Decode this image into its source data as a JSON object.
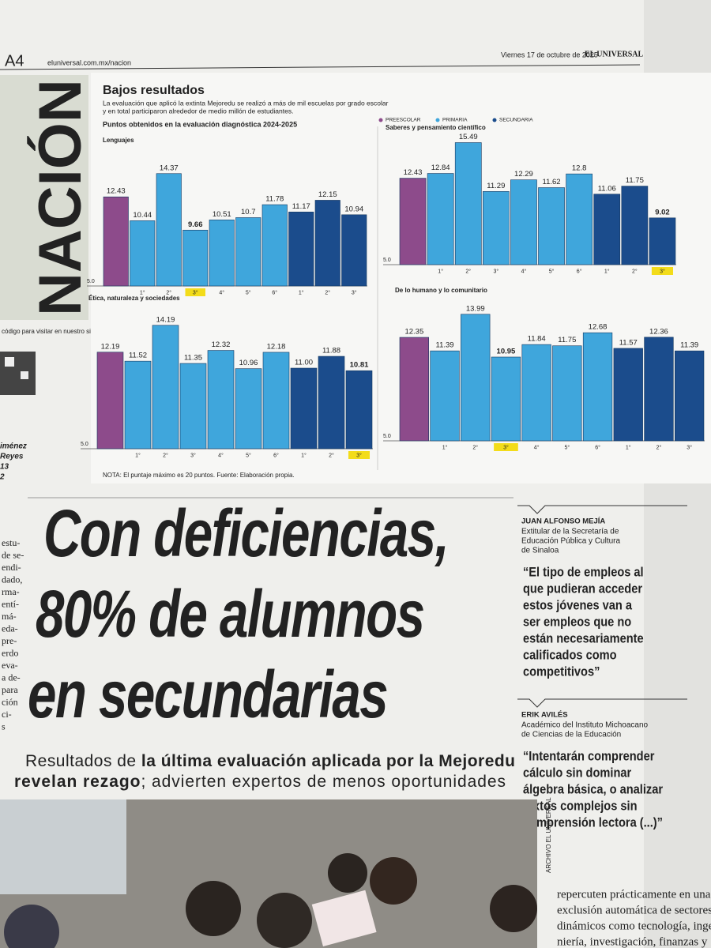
{
  "header": {
    "page": "A4",
    "url": "eluniversal.com.mx/nacion",
    "date": "Viernes 17 de octubre de 2025",
    "brand": "EL UNIVERSAL"
  },
  "section": "NACIÓN",
  "sidebar": {
    "qr_text": "código para visitar en nuestro sitio web",
    "author_lines": [
      "iménez",
      "Reyes",
      "13",
      "2"
    ]
  },
  "infographic": {
    "title": "Bajos resultados",
    "description": [
      "La evaluación que aplicó la extinta Mejoredu  se realizó a más de mil escuelas por grado escolar",
      "y en total participaron alrededor de medio millón de estudiantes."
    ],
    "subtitle": "Puntos obtenidos en la evaluación diagnóstica 2024-2025",
    "legend": [
      {
        "name": "PREESCOLAR",
        "color": "#8d4b8b"
      },
      {
        "name": "PRIMARIA",
        "color": "#3fa6dc"
      },
      {
        "name": "SECUNDARIA",
        "color": "#1b4c8c"
      }
    ],
    "note": "NOTA: El puntaje máximo es 20 puntos. Fuente: Elaboración propia."
  },
  "chart_data": [
    {
      "type": "bar",
      "title": "Lenguajes",
      "categories": [
        null,
        "1°",
        "2°",
        "3°",
        "4°",
        "5°",
        "6°",
        "1°",
        "2°",
        "3°"
      ],
      "values": [
        12.43,
        10.44,
        14.37,
        9.66,
        10.51,
        10.7,
        11.78,
        11.17,
        12.15,
        10.94
      ],
      "colors": [
        "#8d4b8b",
        "#3fa6dc",
        "#3fa6dc",
        "#3fa6dc",
        "#3fa6dc",
        "#3fa6dc",
        "#3fa6dc",
        "#1b4c8c",
        "#1b4c8c",
        "#1b4c8c"
      ],
      "highlight": 3,
      "highlight_color": "#f3dc1a",
      "ylim": [
        5,
        16
      ],
      "yticks": [
        {
          "value": 5,
          "label": "5.0"
        }
      ]
    },
    {
      "type": "bar",
      "title": "Saberes y pensamiento científico",
      "categories": [
        null,
        "1°",
        "2°",
        "3°",
        "4°",
        "5°",
        "6°",
        "1°",
        "2°",
        "3°"
      ],
      "values": [
        12.43,
        12.84,
        15.49,
        11.29,
        12.29,
        11.62,
        12.8,
        11.06,
        11.75,
        9.02
      ],
      "colors": [
        "#8d4b8b",
        "#3fa6dc",
        "#3fa6dc",
        "#3fa6dc",
        "#3fa6dc",
        "#3fa6dc",
        "#3fa6dc",
        "#1b4c8c",
        "#1b4c8c",
        "#1b4c8c"
      ],
      "highlight": 9,
      "highlight_color": "#f3dc1a",
      "ylim": [
        5,
        16
      ],
      "yticks": [
        {
          "value": 5,
          "label": "5.0"
        }
      ]
    },
    {
      "type": "bar",
      "title": "Ética, naturaleza y sociedades",
      "categories": [
        null,
        "1°",
        "2°",
        "3°",
        "4°",
        "5°",
        "6°",
        "1°",
        "2°",
        "3°"
      ],
      "values": [
        12.19,
        11.52,
        14.19,
        11.35,
        12.32,
        10.96,
        12.18,
        11,
        11.88,
        10.81
      ],
      "value_labels": [
        "12.19",
        "11.52",
        "14.19",
        "11.35",
        "12.32",
        "10.96",
        "12.18",
        "11.00",
        "11.88",
        "10.81"
      ],
      "colors": [
        "#8d4b8b",
        "#3fa6dc",
        "#3fa6dc",
        "#3fa6dc",
        "#3fa6dc",
        "#3fa6dc",
        "#3fa6dc",
        "#1b4c8c",
        "#1b4c8c",
        "#1b4c8c"
      ],
      "highlight": 9,
      "highlight_color": "#f3dc1a",
      "ylim": [
        5,
        16
      ],
      "yticks": [
        {
          "value": 5,
          "label": "5.0"
        }
      ]
    },
    {
      "type": "bar",
      "title": "De lo humano y lo comunitario",
      "categories": [
        null,
        "1°",
        "2°",
        "3°",
        "4°",
        "5°",
        "6°",
        "1°",
        "2°",
        "3°"
      ],
      "values": [
        12.35,
        11.39,
        13.99,
        10.95,
        11.84,
        11.75,
        12.68,
        11.57,
        12.36,
        11.39
      ],
      "colors": [
        "#8d4b8b",
        "#3fa6dc",
        "#3fa6dc",
        "#3fa6dc",
        "#3fa6dc",
        "#3fa6dc",
        "#3fa6dc",
        "#1b4c8c",
        "#1b4c8c",
        "#1b4c8c"
      ],
      "highlight": 3,
      "highlight_color": "#f3dc1a",
      "ylim": [
        5,
        16
      ],
      "yticks": [
        {
          "value": 5,
          "label": "5.0"
        }
      ]
    }
  ],
  "article": {
    "headline": [
      "Con deficiencias,",
      "80% de alumnos",
      "en secundarias"
    ],
    "subhead": [
      {
        "text": "Resultados de ",
        "bold": false
      },
      {
        "text": "la última evaluación aplicada por la Mejoredu",
        "bold": true
      },
      {
        "text": "revelan rezago",
        "bold": true
      },
      {
        "text": "; advierten expertos de menos oportunidades",
        "bold": false
      }
    ],
    "left_column": [
      "estu-",
      "de se-",
      "endi-",
      "dado,",
      "rma-",
      "entí-",
      "má-",
      "eda-",
      "pre-",
      "erdo",
      "eva-",
      "a de-",
      "para",
      "ción",
      "ci-",
      "s"
    ],
    "photo_credit": "ARCHIVO EL UNIVERSAL",
    "body": [
      "repercuten prácticamente en una",
      "exclusión automática de sectores",
      "dinámicos como tecnología, inge-",
      "niería, investigación, finanzas y"
    ]
  },
  "quotes": [
    {
      "name": "JUAN ALFONSO MEJÍA",
      "role": [
        "Extitular de la Secretaría de",
        "Educación Pública y Cultura",
        "de Sinaloa"
      ],
      "quote": [
        "“El tipo de empleos al",
        "que pudieran acceder",
        "estos jóvenes van a",
        "ser empleos que no",
        "están necesariamente",
        "calificados como",
        "competitivos”"
      ]
    },
    {
      "name": "ERIK AVILÉS",
      "role": [
        "Académico del Instituto Michoacano",
        "de Ciencias de la Educación"
      ],
      "quote": [
        "“Intentarán comprender",
        "cálculo sin dominar",
        "álgebra básica, o analizar",
        "textos complejos sin",
        "comprensión lectora (...)”"
      ]
    }
  ]
}
